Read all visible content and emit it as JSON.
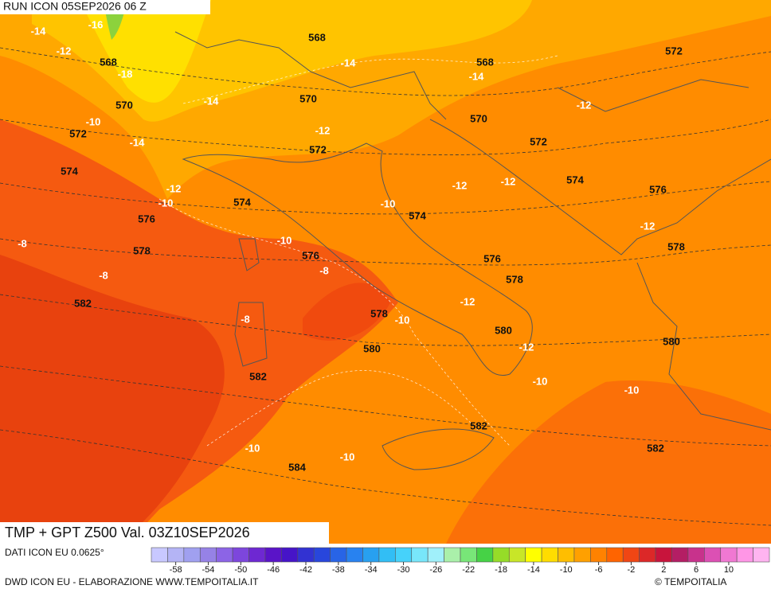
{
  "header": {
    "run": "RUN ICON 05SEP2026 06 Z"
  },
  "map": {
    "title": "TMP + GPT Z500 Val. 03Z10SEP2026",
    "temperature_labels": [
      "-14",
      "-16",
      "-12",
      "-18",
      "-14",
      "-14",
      "-14",
      "-10",
      "-14",
      "-12",
      "-12",
      "-12",
      "-10",
      "-12",
      "-12",
      "-10",
      "-8",
      "-10",
      "-12",
      "-8",
      "-8",
      "-12",
      "-8",
      "-10",
      "-12",
      "-10",
      "-10",
      "-10",
      "-10"
    ],
    "geopotential_labels": [
      "568",
      "568",
      "568",
      "572",
      "570",
      "570",
      "570",
      "572",
      "572",
      "572",
      "574",
      "574",
      "574",
      "576",
      "576",
      "574",
      "578",
      "576",
      "578",
      "576",
      "578",
      "582",
      "578",
      "580",
      "580",
      "580",
      "582",
      "582",
      "582",
      "584"
    ]
  },
  "colorbar": {
    "ticks": [
      -58,
      -54,
      -50,
      -46,
      -42,
      -38,
      -34,
      -30,
      -26,
      -22,
      -18,
      -14,
      -10,
      -6,
      -2,
      2,
      6,
      10
    ],
    "colors": [
      "#c8c8ff",
      "#b4b4f5",
      "#a0a0f0",
      "#9682e6",
      "#8c64e6",
      "#7d46dc",
      "#6e28d2",
      "#5a14c8",
      "#4614c8",
      "#3232d2",
      "#2846dc",
      "#2864e6",
      "#2882f0",
      "#28a0f0",
      "#32bef5",
      "#46d2fa",
      "#78e6fa",
      "#a0f0fa",
      "#aaf0aa",
      "#78e678",
      "#46d246",
      "#96dc28",
      "#c8e628",
      "#ffff00",
      "#ffdc00",
      "#ffbe00",
      "#ffa000",
      "#ff8200",
      "#ff6400",
      "#f04614",
      "#dc2828",
      "#c8143c",
      "#b41e64",
      "#c8328c",
      "#dc50b4",
      "#f078d2",
      "#ff96e6",
      "#ffb4f0"
    ],
    "range": [
      -61,
      15
    ]
  },
  "footer": {
    "source": "DATI ICON EU 0.0625°",
    "credit": "DWD ICON EU - ELABORAZIONE WWW.TEMPOITALIA.IT",
    "brand": "© TEMPOITALIA"
  }
}
